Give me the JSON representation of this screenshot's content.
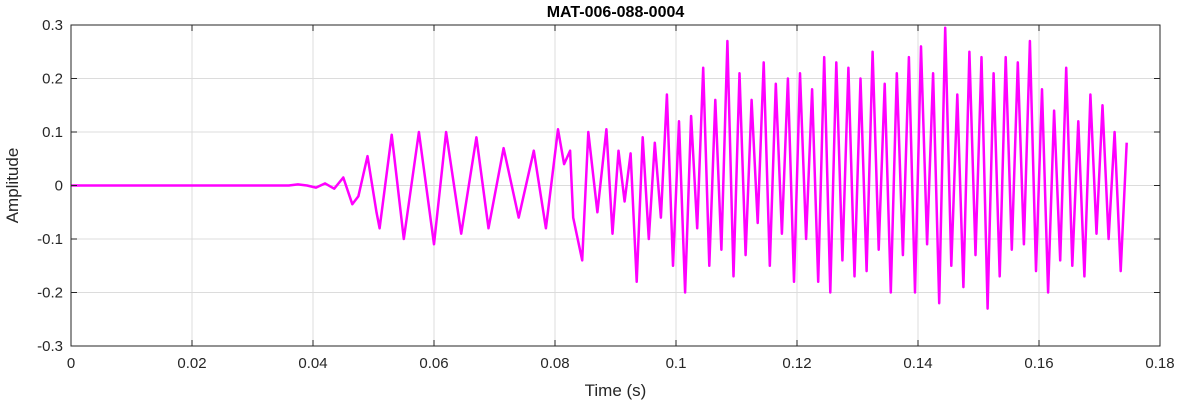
{
  "chart_data": {
    "type": "line",
    "title": "MAT-006-088-0004",
    "xlabel": "Time (s)",
    "ylabel": "Amplitude",
    "xlim": [
      0,
      0.18
    ],
    "ylim": [
      -0.3,
      0.3
    ],
    "x_ticks": [
      0,
      0.02,
      0.04,
      0.06,
      0.08,
      0.1,
      0.12,
      0.14,
      0.16,
      0.18
    ],
    "x_tick_labels": [
      "0",
      "0.02",
      "0.04",
      "0.06",
      "0.08",
      "0.1",
      "0.12",
      "0.14",
      "0.16",
      "0.18"
    ],
    "y_ticks": [
      -0.3,
      -0.2,
      -0.1,
      0,
      0.1,
      0.2,
      0.3
    ],
    "y_tick_labels": [
      "-0.3",
      "-0.2",
      "-0.1",
      "0",
      "0.1",
      "0.2",
      "0.3"
    ],
    "grid": true,
    "line_color": "#ff00ff",
    "series": [
      {
        "x": [
          0,
          0.036,
          0.0375,
          0.039,
          0.0405,
          0.042,
          0.0435,
          0.045,
          0.0465,
          0.0475,
          0.049,
          0.0505,
          0.051,
          0.053,
          0.055,
          0.0575,
          0.06,
          0.062,
          0.0645,
          0.067,
          0.069,
          0.0715,
          0.074,
          0.0765,
          0.0785,
          0.0805,
          0.0815,
          0.0825,
          0.083,
          0.0845,
          0.0855,
          0.087,
          0.0885,
          0.0895,
          0.0905,
          0.0915,
          0.0925,
          0.0935,
          0.0945,
          0.0955,
          0.0965,
          0.0975,
          0.0985,
          0.0995,
          0.1005,
          0.1015,
          0.1025,
          0.1035,
          0.1045,
          0.1055,
          0.1065,
          0.1075,
          0.1085,
          0.1095,
          0.1105,
          0.1115,
          0.1125,
          0.1135,
          0.1145,
          0.1155,
          0.1165,
          0.1175,
          0.1185,
          0.1195,
          0.1205,
          0.1215,
          0.1225,
          0.1235,
          0.1245,
          0.1255,
          0.1265,
          0.1275,
          0.1285,
          0.1295,
          0.1305,
          0.1315,
          0.1325,
          0.1335,
          0.1345,
          0.1355,
          0.1365,
          0.1375,
          0.1385,
          0.1395,
          0.1405,
          0.1415,
          0.1425,
          0.1435,
          0.1445,
          0.1455,
          0.1465,
          0.1475,
          0.1485,
          0.1495,
          0.1505,
          0.1515,
          0.1525,
          0.1535,
          0.1545,
          0.1555,
          0.1565,
          0.1575,
          0.1585,
          0.1595,
          0.1605,
          0.1615,
          0.1625,
          0.1635,
          0.1645,
          0.1655,
          0.1665,
          0.1675,
          0.1685,
          0.1695,
          0.1705,
          0.1715,
          0.1725,
          0.1735,
          0.1745
        ],
        "y": [
          0,
          0,
          0.002,
          0,
          -0.004,
          0.004,
          -0.006,
          0.015,
          -0.035,
          -0.02,
          0.055,
          -0.05,
          -0.08,
          0.095,
          -0.1,
          0.1,
          -0.11,
          0.1,
          -0.09,
          0.09,
          -0.08,
          0.07,
          -0.06,
          0.065,
          -0.08,
          0.105,
          0.04,
          0.065,
          -0.06,
          -0.14,
          0.1,
          -0.05,
          0.105,
          -0.09,
          0.065,
          -0.03,
          0.06,
          -0.18,
          0.09,
          -0.1,
          0.08,
          -0.06,
          0.17,
          -0.15,
          0.12,
          -0.2,
          0.13,
          -0.08,
          0.22,
          -0.15,
          0.16,
          -0.12,
          0.27,
          -0.17,
          0.21,
          -0.13,
          0.16,
          -0.07,
          0.23,
          -0.15,
          0.19,
          -0.09,
          0.2,
          -0.18,
          0.21,
          -0.1,
          0.18,
          -0.18,
          0.24,
          -0.2,
          0.23,
          -0.14,
          0.22,
          -0.17,
          0.2,
          -0.16,
          0.25,
          -0.12,
          0.19,
          -0.2,
          0.21,
          -0.13,
          0.24,
          -0.2,
          0.26,
          -0.11,
          0.21,
          -0.22,
          0.295,
          -0.15,
          0.17,
          -0.19,
          0.25,
          -0.13,
          0.24,
          -0.23,
          0.21,
          -0.17,
          0.24,
          -0.12,
          0.23,
          -0.11,
          0.27,
          -0.16,
          0.18,
          -0.2,
          0.14,
          -0.14,
          0.22,
          -0.15,
          0.12,
          -0.17,
          0.17,
          -0.09,
          0.15,
          -0.1,
          0.1,
          -0.16,
          0.08
        ]
      }
    ]
  }
}
